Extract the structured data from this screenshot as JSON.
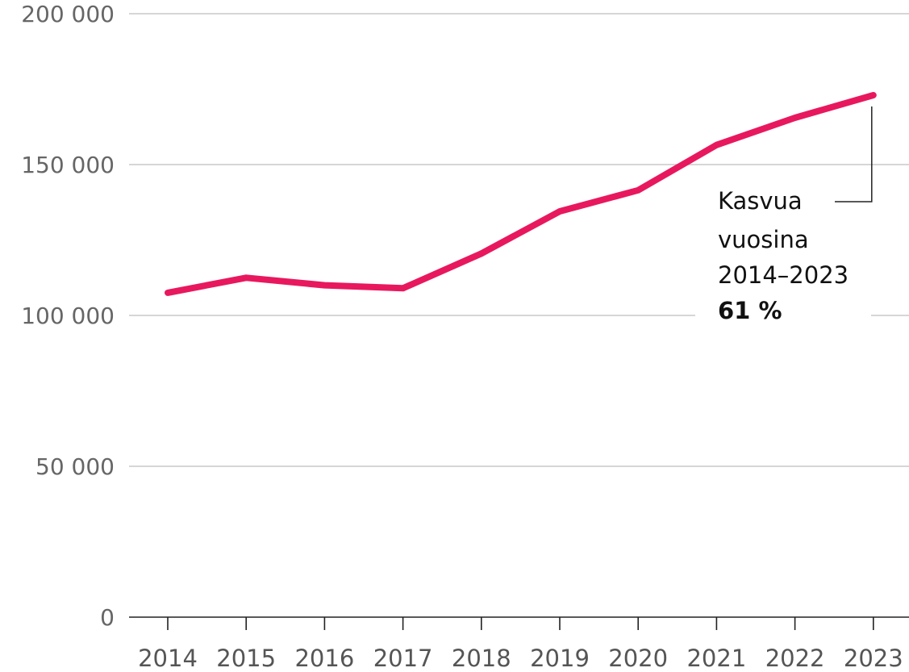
{
  "chart_data": {
    "type": "line",
    "title": "",
    "xlabel": "",
    "ylabel": "",
    "x": [
      "2014",
      "2015",
      "2016",
      "2017",
      "2018",
      "2019",
      "2020",
      "2021",
      "2022",
      "2023"
    ],
    "series": [
      {
        "values": [
          107500,
          112500,
          110000,
          109000,
          120500,
          134500,
          141500,
          156500,
          165500,
          173000
        ],
        "color": "#e8185f"
      }
    ],
    "ylim": [
      0,
      200000
    ],
    "yticks": [
      {
        "value": 0,
        "label": "0"
      },
      {
        "value": 50000,
        "label": "50 000"
      },
      {
        "value": 100000,
        "label": "100 000"
      },
      {
        "value": 150000,
        "label": "150 000"
      },
      {
        "value": 200000,
        "label": "200 000"
      }
    ],
    "grid": true,
    "annotation": {
      "lines": [
        "Kasvua",
        "vuosina",
        "2014–2023"
      ],
      "value": "61 %",
      "target_x": "2023"
    }
  },
  "colors": {
    "line": "#e8185f",
    "grid": "#c8c8c8",
    "axis": "#222222"
  }
}
